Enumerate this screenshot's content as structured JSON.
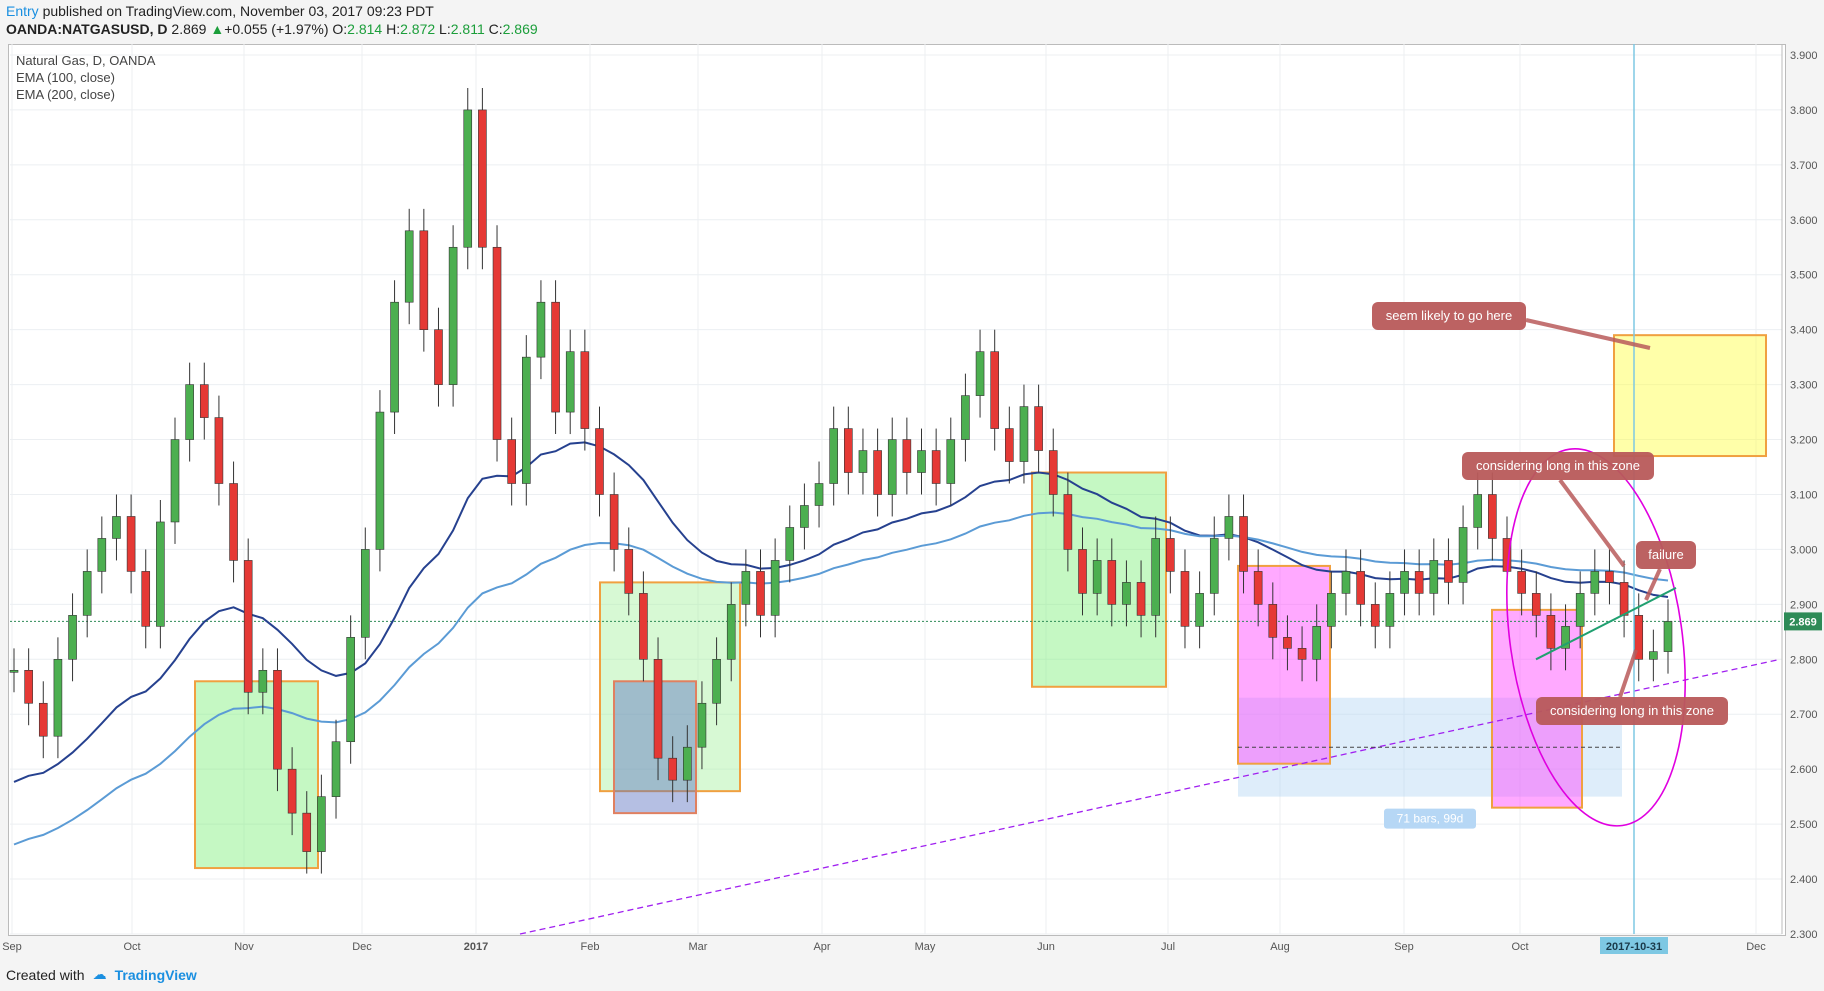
{
  "header": {
    "author": "Entry",
    "published": "published on TradingView.com, November 03, 2017 09:23 PDT",
    "symbol": "OANDA:NATGASUSD, D",
    "last": "2.869",
    "change_arrow": "▲",
    "change": "+0.055 (+1.97%)",
    "o_label": "O:",
    "o": "2.814",
    "h_label": "H:",
    "h": "2.872",
    "l_label": "L:",
    "l": "2.811",
    "c_label": "C:",
    "c": "2.869"
  },
  "legend": {
    "title": "Natural Gas, D, OANDA",
    "ema100": "EMA (100, close)",
    "ema200": "EMA (200, close)"
  },
  "footer": {
    "created_with": "Created with",
    "brand": "TradingView"
  },
  "colors": {
    "up": "#4caf50",
    "down": "#e53935",
    "ema100": "#26418f",
    "ema200": "#5b9bd5",
    "price_line": "#2e8b57",
    "label_fill": "#b85a5a",
    "ellipse": "#e000e0",
    "trend_dashed": "#a020f0"
  },
  "chart_data": {
    "type": "candlestick",
    "title": "Natural Gas, D, OANDA",
    "ylim": [
      2.3,
      3.92
    ],
    "y_ticks": [
      "2.300",
      "2.400",
      "2.500",
      "2.600",
      "2.700",
      "2.800",
      "2.900",
      "3.000",
      "3.100",
      "3.200",
      "3.300",
      "3.400",
      "3.500",
      "3.600",
      "3.700",
      "3.800",
      "3.900"
    ],
    "x_ticks": [
      "Sep",
      "Oct",
      "Nov",
      "Dec",
      "2017",
      "Feb",
      "Mar",
      "Apr",
      "May",
      "Jun",
      "Jul",
      "Aug",
      "Sep",
      "Oct",
      "Nov",
      "Dec"
    ],
    "last_price": "2.869",
    "cursor_date": "2017-10-31",
    "measure_label": "71 bars, 99d",
    "series": [
      {
        "name": "EMA (100, close)"
      },
      {
        "name": "EMA (200, close)"
      }
    ],
    "close_path": [
      {
        "m": "Sep",
        "v": 2.78
      },
      {
        "m": "Sep",
        "v": 2.72
      },
      {
        "m": "Sep",
        "v": 2.66
      },
      {
        "m": "Sep",
        "v": 2.8
      },
      {
        "m": "Sep",
        "v": 2.88
      },
      {
        "m": "Sep",
        "v": 2.96
      },
      {
        "m": "Sep",
        "v": 3.02
      },
      {
        "m": "Sep",
        "v": 3.06
      },
      {
        "m": "Oct",
        "v": 2.96
      },
      {
        "m": "Oct",
        "v": 2.86
      },
      {
        "m": "Oct",
        "v": 3.05
      },
      {
        "m": "Oct",
        "v": 3.2
      },
      {
        "m": "Oct",
        "v": 3.3
      },
      {
        "m": "Oct",
        "v": 3.24
      },
      {
        "m": "Oct",
        "v": 3.12
      },
      {
        "m": "Oct",
        "v": 2.98
      },
      {
        "m": "Nov",
        "v": 2.74
      },
      {
        "m": "Nov",
        "v": 2.78
      },
      {
        "m": "Nov",
        "v": 2.6
      },
      {
        "m": "Nov",
        "v": 2.52
      },
      {
        "m": "Nov",
        "v": 2.45
      },
      {
        "m": "Nov",
        "v": 2.55
      },
      {
        "m": "Nov",
        "v": 2.65
      },
      {
        "m": "Nov",
        "v": 2.84
      },
      {
        "m": "Dec",
        "v": 3.0
      },
      {
        "m": "Dec",
        "v": 3.25
      },
      {
        "m": "Dec",
        "v": 3.45
      },
      {
        "m": "Dec",
        "v": 3.58
      },
      {
        "m": "Dec",
        "v": 3.4
      },
      {
        "m": "Dec",
        "v": 3.3
      },
      {
        "m": "Dec",
        "v": 3.55
      },
      {
        "m": "Dec",
        "v": 3.8
      },
      {
        "m": "2017",
        "v": 3.55
      },
      {
        "m": "2017",
        "v": 3.2
      },
      {
        "m": "2017",
        "v": 3.12
      },
      {
        "m": "2017",
        "v": 3.35
      },
      {
        "m": "2017",
        "v": 3.45
      },
      {
        "m": "2017",
        "v": 3.25
      },
      {
        "m": "2017",
        "v": 3.36
      },
      {
        "m": "2017",
        "v": 3.22
      },
      {
        "m": "Feb",
        "v": 3.1
      },
      {
        "m": "Feb",
        "v": 3.0
      },
      {
        "m": "Feb",
        "v": 2.92
      },
      {
        "m": "Feb",
        "v": 2.8
      },
      {
        "m": "Feb",
        "v": 2.62
      },
      {
        "m": "Feb",
        "v": 2.58
      },
      {
        "m": "Feb",
        "v": 2.64
      },
      {
        "m": "Feb",
        "v": 2.72
      },
      {
        "m": "Mar",
        "v": 2.8
      },
      {
        "m": "Mar",
        "v": 2.9
      },
      {
        "m": "Mar",
        "v": 2.96
      },
      {
        "m": "Mar",
        "v": 2.88
      },
      {
        "m": "Mar",
        "v": 2.98
      },
      {
        "m": "Mar",
        "v": 3.04
      },
      {
        "m": "Mar",
        "v": 3.08
      },
      {
        "m": "Mar",
        "v": 3.12
      },
      {
        "m": "Apr",
        "v": 3.22
      },
      {
        "m": "Apr",
        "v": 3.14
      },
      {
        "m": "Apr",
        "v": 3.18
      },
      {
        "m": "Apr",
        "v": 3.1
      },
      {
        "m": "Apr",
        "v": 3.2
      },
      {
        "m": "Apr",
        "v": 3.14
      },
      {
        "m": "Apr",
        "v": 3.18
      },
      {
        "m": "Apr",
        "v": 3.12
      },
      {
        "m": "May",
        "v": 3.2
      },
      {
        "m": "May",
        "v": 3.28
      },
      {
        "m": "May",
        "v": 3.36
      },
      {
        "m": "May",
        "v": 3.22
      },
      {
        "m": "May",
        "v": 3.16
      },
      {
        "m": "May",
        "v": 3.26
      },
      {
        "m": "May",
        "v": 3.18
      },
      {
        "m": "May",
        "v": 3.1
      },
      {
        "m": "Jun",
        "v": 3.0
      },
      {
        "m": "Jun",
        "v": 2.92
      },
      {
        "m": "Jun",
        "v": 2.98
      },
      {
        "m": "Jun",
        "v": 2.9
      },
      {
        "m": "Jun",
        "v": 2.94
      },
      {
        "m": "Jun",
        "v": 2.88
      },
      {
        "m": "Jun",
        "v": 3.02
      },
      {
        "m": "Jun",
        "v": 2.96
      },
      {
        "m": "Jul",
        "v": 2.86
      },
      {
        "m": "Jul",
        "v": 2.92
      },
      {
        "m": "Jul",
        "v": 3.02
      },
      {
        "m": "Jul",
        "v": 3.06
      },
      {
        "m": "Jul",
        "v": 2.96
      },
      {
        "m": "Jul",
        "v": 2.9
      },
      {
        "m": "Jul",
        "v": 2.84
      },
      {
        "m": "Jul",
        "v": 2.82
      },
      {
        "m": "Aug",
        "v": 2.8
      },
      {
        "m": "Aug",
        "v": 2.86
      },
      {
        "m": "Aug",
        "v": 2.92
      },
      {
        "m": "Aug",
        "v": 2.96
      },
      {
        "m": "Aug",
        "v": 2.9
      },
      {
        "m": "Aug",
        "v": 2.86
      },
      {
        "m": "Aug",
        "v": 2.92
      },
      {
        "m": "Aug",
        "v": 2.96
      },
      {
        "m": "Sep",
        "v": 2.92
      },
      {
        "m": "Sep",
        "v": 2.98
      },
      {
        "m": "Sep",
        "v": 2.94
      },
      {
        "m": "Sep",
        "v": 3.04
      },
      {
        "m": "Sep",
        "v": 3.1
      },
      {
        "m": "Sep",
        "v": 3.02
      },
      {
        "m": "Sep",
        "v": 2.96
      },
      {
        "m": "Sep",
        "v": 2.92
      },
      {
        "m": "Oct",
        "v": 2.88
      },
      {
        "m": "Oct",
        "v": 2.82
      },
      {
        "m": "Oct",
        "v": 2.86
      },
      {
        "m": "Oct",
        "v": 2.92
      },
      {
        "m": "Oct",
        "v": 2.96
      },
      {
        "m": "Oct",
        "v": 2.94
      },
      {
        "m": "Oct",
        "v": 2.88
      },
      {
        "m": "Oct",
        "v": 2.8
      },
      {
        "m": "Nov",
        "v": 2.814
      },
      {
        "m": "Nov",
        "v": 2.869
      }
    ],
    "annotations": [
      {
        "text": "seem likely to go here"
      },
      {
        "text": "considering long in this zone"
      },
      {
        "text": "failure"
      },
      {
        "text": "considering long in this zone"
      }
    ]
  }
}
